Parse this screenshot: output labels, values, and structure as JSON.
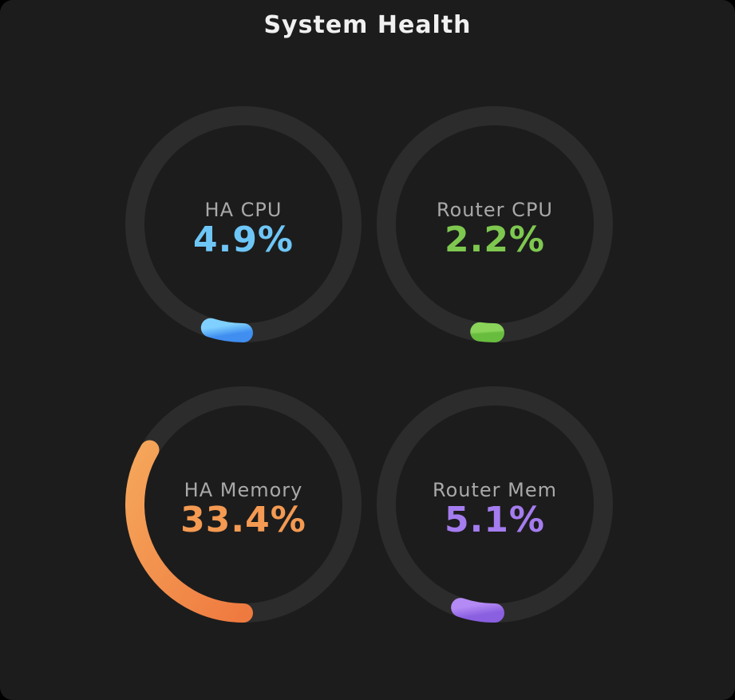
{
  "title": "System Health",
  "gauges": [
    {
      "label": "HA CPU",
      "value_text": "4.9%",
      "percent": 4.9,
      "color": "#6ec6f7",
      "gradient": [
        "#7fd0ff",
        "#3f8ef0"
      ]
    },
    {
      "label": "Router CPU",
      "value_text": "2.2%",
      "percent": 2.2,
      "color": "#7ec850",
      "gradient": [
        "#8ad45a",
        "#68bd3e"
      ]
    },
    {
      "label": "HA Memory",
      "value_text": "33.4%",
      "percent": 33.4,
      "color": "#f49a52",
      "gradient": [
        "#f5a65a",
        "#ef7a40"
      ]
    },
    {
      "label": "Router Mem",
      "value_text": "5.1%",
      "percent": 5.1,
      "color": "#a57cef",
      "gradient": [
        "#b48af5",
        "#8a5fe0"
      ]
    }
  ]
}
